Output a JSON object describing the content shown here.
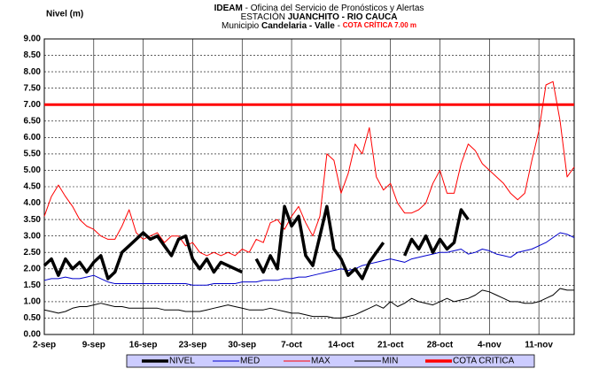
{
  "chart_data": {
    "type": "line",
    "title_lines": [
      [
        {
          "text": "IDEAM",
          "style": "bold"
        },
        {
          "text": " - Oficina del Servicio de Pronósticos y Alertas",
          "style": "normal"
        }
      ],
      [
        {
          "text": "ESTACIÓN ",
          "style": "normal"
        },
        {
          "text": "JUANCHITO - RIO CAUCA",
          "style": "bold"
        }
      ],
      [
        {
          "text": "Municipio ",
          "style": "normal"
        },
        {
          "text": "Candelaria - Valle",
          "style": "bold"
        },
        {
          "text": " - ",
          "style": "normal"
        },
        {
          "text": "COTA CRÍTICA 7.00 m",
          "style": "red"
        }
      ]
    ],
    "y_label": "Nivel (m)",
    "categories": [
      "2-sep",
      null,
      null,
      null,
      null,
      null,
      null,
      "9-sep",
      null,
      null,
      null,
      null,
      null,
      null,
      "16-sep",
      null,
      null,
      null,
      null,
      null,
      null,
      "23-sep",
      null,
      null,
      null,
      null,
      null,
      null,
      "30-sep",
      null,
      null,
      null,
      null,
      null,
      null,
      "7-oct",
      null,
      null,
      null,
      null,
      null,
      null,
      "14-oct",
      null,
      null,
      null,
      null,
      null,
      null,
      "21-oct",
      null,
      null,
      null,
      null,
      null,
      null,
      "28-oct",
      null,
      null,
      null,
      null,
      null,
      null,
      "4-nov",
      null,
      null,
      null,
      null,
      null,
      null,
      "11-nov",
      null,
      null,
      null,
      null,
      null
    ],
    "ylim": [
      0,
      9
    ],
    "yticks": [
      {
        "value": 0,
        "label": "0.00"
      },
      {
        "value": 0.5,
        "label": "0.50"
      },
      {
        "value": 1,
        "label": "1.00"
      },
      {
        "value": 1.5,
        "label": "1.50"
      },
      {
        "value": 2,
        "label": "2.00"
      },
      {
        "value": 2.5,
        "label": "2.50"
      },
      {
        "value": 3,
        "label": "3.00"
      },
      {
        "value": 3.5,
        "label": "3.50"
      },
      {
        "value": 4,
        "label": "4.00"
      },
      {
        "value": 4.5,
        "label": "4.50"
      },
      {
        "value": 5,
        "label": "5.00"
      },
      {
        "value": 5.5,
        "label": "5.50"
      },
      {
        "value": 6,
        "label": "6.00"
      },
      {
        "value": 6.5,
        "label": "6.50"
      },
      {
        "value": 7,
        "label": "7.00"
      },
      {
        "value": 7.5,
        "label": "7.50"
      },
      {
        "value": 8,
        "label": "8.00"
      },
      {
        "value": 8.5,
        "label": "8.50"
      },
      {
        "value": 9,
        "label": "9.00"
      }
    ],
    "grid": true,
    "series": [
      {
        "name": "NIVEL",
        "color": "#000000",
        "width": 3.5,
        "values": [
          2.1,
          2.3,
          1.8,
          2.3,
          2.0,
          2.2,
          1.9,
          2.2,
          2.4,
          1.7,
          1.9,
          2.5,
          2.7,
          2.9,
          3.1,
          2.9,
          3.0,
          2.7,
          2.4,
          2.9,
          3.0,
          2.3,
          2.0,
          2.3,
          1.9,
          2.2,
          2.1,
          2.0,
          1.9,
          null,
          2.3,
          1.9,
          2.4,
          2.0,
          3.9,
          3.3,
          3.6,
          2.4,
          2.1,
          3.0,
          3.9,
          2.6,
          2.3,
          1.8,
          2.0,
          1.7,
          2.2,
          2.5,
          2.8,
          null,
          null,
          2.4,
          2.9,
          2.6,
          3.0,
          2.5,
          2.9,
          2.6,
          2.8,
          3.8,
          3.5,
          null,
          null,
          null,
          null,
          null,
          null,
          null,
          null,
          null,
          null,
          null,
          null,
          null,
          null,
          null
        ]
      },
      {
        "name": "MED",
        "color": "#0000cc",
        "width": 1,
        "values": [
          1.65,
          1.7,
          1.7,
          1.75,
          1.7,
          1.7,
          1.75,
          1.8,
          1.7,
          1.6,
          1.55,
          1.55,
          1.55,
          1.55,
          1.55,
          1.55,
          1.55,
          1.55,
          1.55,
          1.55,
          1.55,
          1.5,
          1.5,
          1.5,
          1.55,
          1.55,
          1.55,
          1.55,
          1.6,
          1.6,
          1.6,
          1.65,
          1.65,
          1.65,
          1.7,
          1.7,
          1.75,
          1.75,
          1.8,
          1.85,
          1.9,
          1.95,
          2.0,
          1.95,
          2.0,
          2.1,
          2.15,
          2.2,
          2.25,
          2.3,
          2.25,
          2.2,
          2.3,
          2.35,
          2.4,
          2.45,
          2.5,
          2.5,
          2.55,
          2.6,
          2.45,
          2.5,
          2.6,
          2.55,
          2.45,
          2.4,
          2.35,
          2.5,
          2.55,
          2.6,
          2.7,
          2.8,
          2.95,
          3.1,
          3.05,
          2.95
        ]
      },
      {
        "name": "MAX",
        "color": "#ff0000",
        "width": 1,
        "values": [
          3.6,
          4.2,
          4.55,
          4.2,
          3.9,
          3.5,
          3.3,
          3.2,
          3.0,
          2.9,
          2.9,
          3.3,
          3.8,
          3.1,
          2.9,
          3.0,
          3.1,
          2.8,
          3.0,
          3.0,
          2.7,
          2.8,
          2.5,
          2.4,
          2.5,
          2.4,
          2.5,
          2.4,
          2.6,
          2.5,
          2.9,
          2.8,
          3.4,
          3.5,
          3.2,
          3.6,
          3.9,
          3.4,
          3.0,
          3.6,
          5.5,
          5.3,
          4.3,
          4.9,
          5.8,
          5.5,
          6.3,
          4.8,
          4.4,
          4.6,
          4.0,
          3.7,
          3.7,
          3.8,
          4.0,
          4.6,
          5.0,
          4.3,
          4.3,
          5.2,
          5.8,
          5.6,
          5.2,
          5.0,
          4.8,
          4.6,
          4.3,
          4.1,
          4.3,
          5.3,
          6.2,
          7.6,
          7.7,
          6.5,
          4.8,
          5.1
        ]
      },
      {
        "name": "MIN",
        "color": "#000000",
        "width": 1,
        "values": [
          0.75,
          0.7,
          0.65,
          0.7,
          0.8,
          0.85,
          0.85,
          0.9,
          0.95,
          0.9,
          0.85,
          0.85,
          0.8,
          0.8,
          0.8,
          0.8,
          0.8,
          0.75,
          0.75,
          0.75,
          0.7,
          0.7,
          0.7,
          0.75,
          0.8,
          0.85,
          0.9,
          0.85,
          0.8,
          0.75,
          0.75,
          0.75,
          0.8,
          0.75,
          0.7,
          0.65,
          0.65,
          0.6,
          0.55,
          0.55,
          0.55,
          0.5,
          0.5,
          0.55,
          0.6,
          0.7,
          0.8,
          0.9,
          0.8,
          1.0,
          0.85,
          0.95,
          1.1,
          1.0,
          0.95,
          0.9,
          1.0,
          1.1,
          1.0,
          1.05,
          1.1,
          1.2,
          1.35,
          1.3,
          1.2,
          1.1,
          1.0,
          1.0,
          0.95,
          0.95,
          1.0,
          1.1,
          1.2,
          1.4,
          1.35,
          1.35
        ]
      }
    ],
    "threshold": {
      "name": "COTA CRITICA",
      "color": "#ff0000",
      "value": 7
    }
  }
}
